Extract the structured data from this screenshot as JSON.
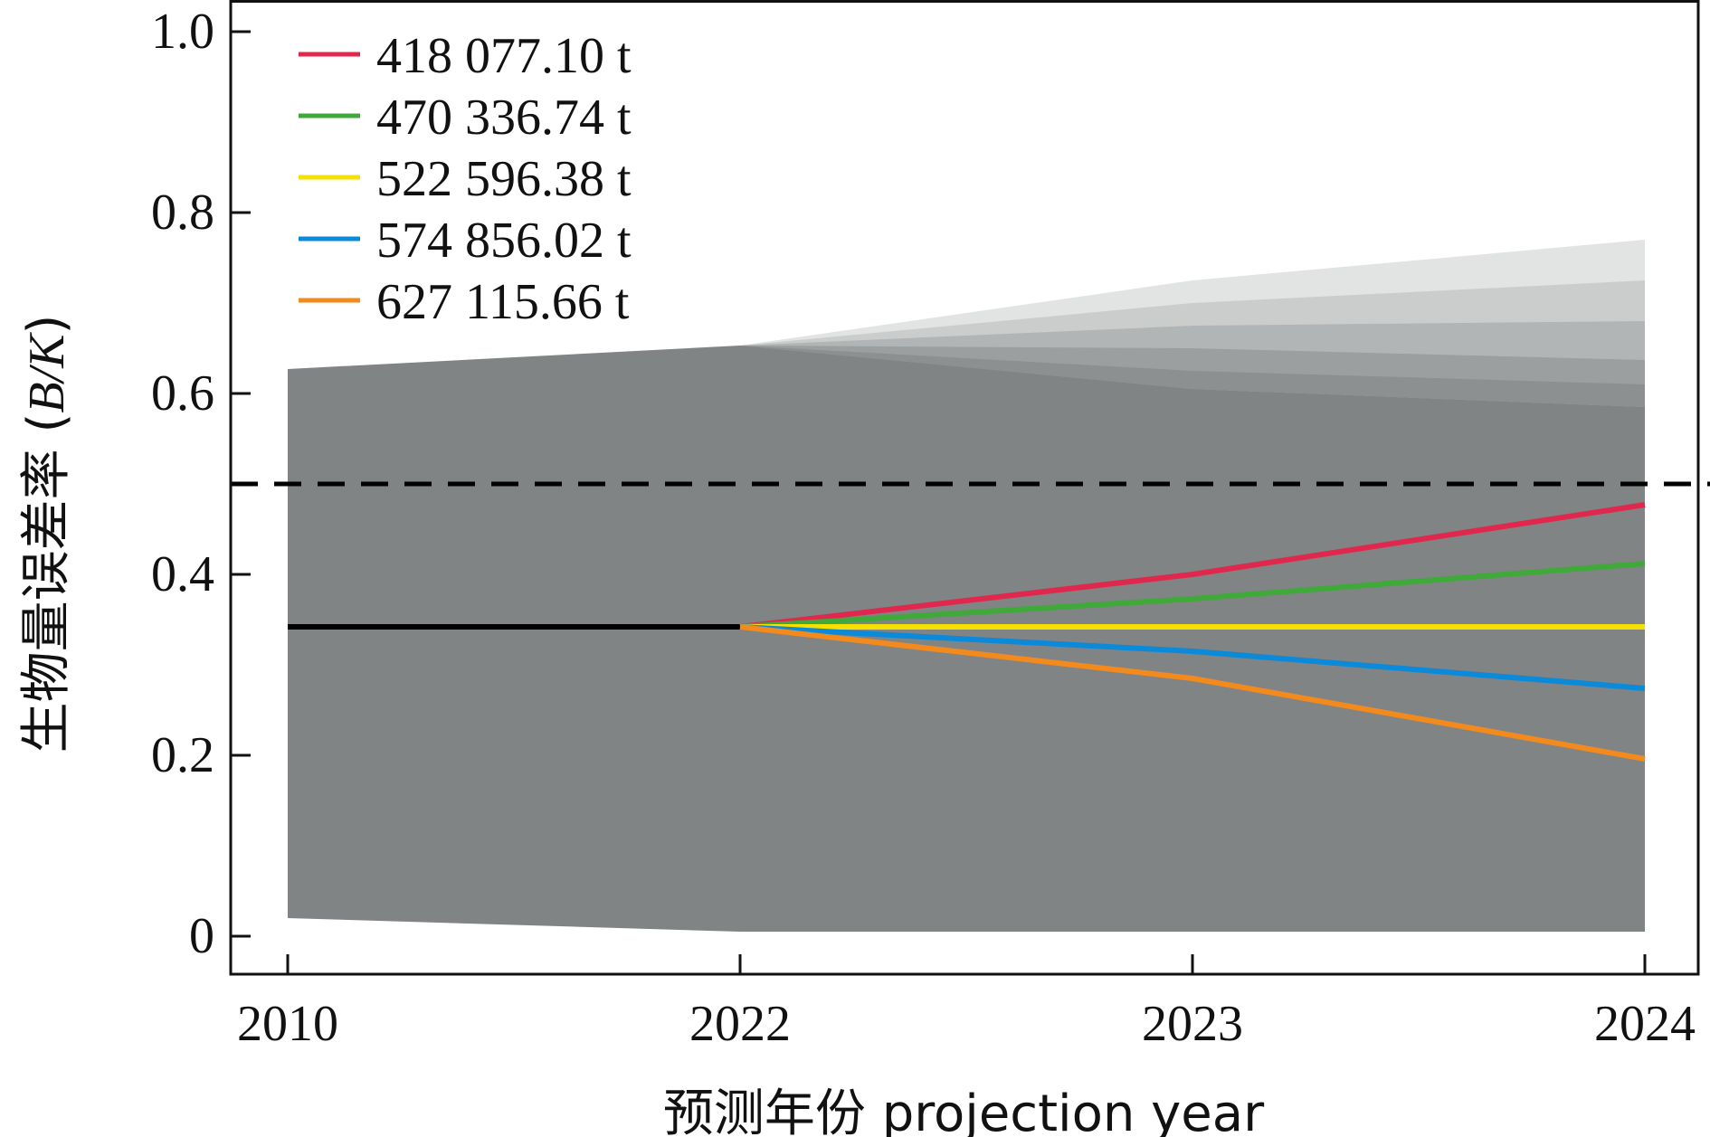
{
  "chart_data": {
    "type": "line",
    "x_categories": [
      "2010",
      "2022",
      "2023",
      "2024"
    ],
    "xlabel": "预测年份 projection year",
    "ylabel_prefix": "生物量误差率 (",
    "ylabel_italic": "B/K",
    "ylabel_suffix": ")",
    "ylim": [
      0,
      1.0
    ],
    "yticks": [
      0,
      0.2,
      0.4,
      0.6,
      0.8,
      1.0
    ],
    "ytick_labels": [
      "0",
      "0.2",
      "0.4",
      "0.6",
      "0.8",
      "1.0"
    ],
    "reference_line": {
      "y": 0.5,
      "style": "dashed",
      "color": "#000000"
    },
    "historical": {
      "x": [
        0,
        1
      ],
      "y": [
        0.342,
        0.342
      ],
      "color": "#000000"
    },
    "uncertainty_band": {
      "color": "#808484",
      "x": [
        0,
        1,
        2,
        3
      ],
      "lower": [
        0.02,
        0.005,
        0.005,
        0.005
      ],
      "upper": [
        0.627,
        0.653,
        0.605,
        0.585
      ]
    },
    "series": [
      {
        "name": "418 077.10 t",
        "color": "#e0284e",
        "x": [
          1,
          2,
          3
        ],
        "y": [
          0.342,
          0.4,
          0.477
        ],
        "band_upper": [
          0.653,
          0.725,
          0.77
        ],
        "band_color": "#e2e3e3"
      },
      {
        "name": "470 336.74 t",
        "color": "#3faa3a",
        "x": [
          1,
          2,
          3
        ],
        "y": [
          0.342,
          0.373,
          0.412
        ],
        "band_upper": [
          0.653,
          0.7,
          0.725
        ],
        "band_color": "#cbcdcd"
      },
      {
        "name": "522 596.38 t",
        "color": "#f5e000",
        "x": [
          1,
          2,
          3
        ],
        "y": [
          0.342,
          0.342,
          0.342
        ],
        "band_upper": [
          0.653,
          0.675,
          0.68
        ],
        "band_color": "#b2b5b5"
      },
      {
        "name": "574 856.02 t",
        "color": "#0a8ad8",
        "x": [
          1,
          2,
          3
        ],
        "y": [
          0.342,
          0.315,
          0.274
        ],
        "band_upper": [
          0.653,
          0.65,
          0.637
        ],
        "band_color": "#9b9f9f"
      },
      {
        "name": "627 115.66 t",
        "color": "#f28a1e",
        "x": [
          1,
          2,
          3
        ],
        "y": [
          0.342,
          0.285,
          0.196
        ],
        "band_upper": [
          0.653,
          0.625,
          0.61
        ],
        "band_color": "#8c9090"
      }
    ],
    "legend_position": "top-left"
  }
}
